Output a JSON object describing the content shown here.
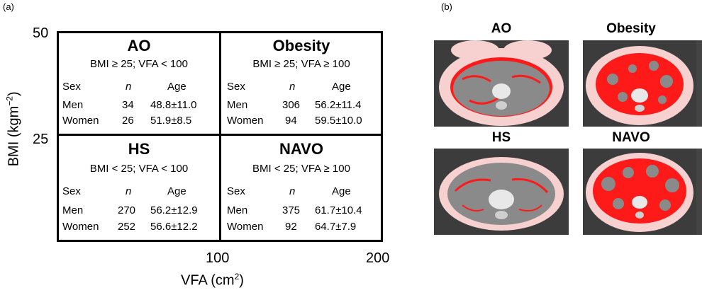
{
  "panel_a_label": "(a)",
  "panel_b_label": "(b)",
  "y_axis": {
    "title": "BMI (kgm",
    "title_sup": "−2",
    "title_end": ")",
    "ticks": [
      "50",
      "25"
    ]
  },
  "x_axis": {
    "title": "VFA (cm",
    "title_sup": "2",
    "title_end": ")",
    "ticks": [
      "100",
      "200"
    ]
  },
  "table_headers": {
    "sex": "Sex",
    "n": "n",
    "age": "Age"
  },
  "quadrants": {
    "ao": {
      "title": "AO",
      "criteria": "BMI ≥ 25;  VFA < 100",
      "rows": [
        {
          "sex": "Men",
          "n": "34",
          "age": "48.8±11.0"
        },
        {
          "sex": "Women",
          "n": "26",
          "age": "51.9±8.5"
        }
      ]
    },
    "obesity": {
      "title": "Obesity",
      "criteria": "BMI ≥ 25;  VFA ≥ 100",
      "rows": [
        {
          "sex": "Men",
          "n": "306",
          "age": "56.2±11.4"
        },
        {
          "sex": "Women",
          "n": "94",
          "age": "59.5±10.0"
        }
      ]
    },
    "hs": {
      "title": "HS",
      "criteria": "BMI < 25;  VFA < 100",
      "rows": [
        {
          "sex": "Men",
          "n": "270",
          "age": "56.2±12.9"
        },
        {
          "sex": "Women",
          "n": "252",
          "age": "56.6±12.2"
        }
      ]
    },
    "navo": {
      "title": "NAVO",
      "criteria": "BMI < 25;  VFA ≥  100",
      "rows": [
        {
          "sex": "Men",
          "n": "375",
          "age": "61.7±10.4"
        },
        {
          "sex": "Women",
          "n": "92",
          "age": "64.7±7.9"
        }
      ]
    }
  },
  "scans": {
    "ao": {
      "title": "AO"
    },
    "obesity": {
      "title": "Obesity"
    },
    "hs": {
      "title": "HS"
    },
    "navo": {
      "title": "NAVO"
    }
  },
  "colors": {
    "visceral_fat": "#ff1a1a",
    "subcutaneous_fat": "#f7d0d0",
    "tissue": "#8a8a8a",
    "background": "#3c3c3c",
    "bone": "#e8e8e8"
  }
}
